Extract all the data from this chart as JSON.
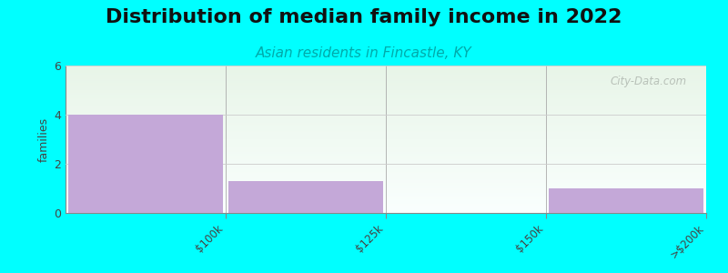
{
  "title": "Distribution of median family income in 2022",
  "subtitle": "Asian residents in Fincastle, KY",
  "categories": [
    "$100k",
    "$125k",
    "$150k",
    ">$200k"
  ],
  "values": [
    4,
    1.3,
    0,
    1
  ],
  "bar_color": "#c4a8d8",
  "background_color": "#00FFFF",
  "plot_bg_color_top": "#e8f5e8",
  "plot_bg_color_bottom": "#f8fff8",
  "ylabel": "families",
  "ylim": [
    0,
    6
  ],
  "yticks": [
    0,
    2,
    4,
    6
  ],
  "title_fontsize": 16,
  "subtitle_fontsize": 11,
  "subtitle_color": "#00AAAA",
  "watermark": "City-Data.com",
  "watermark_color": "#b0b8b0",
  "tick_label_fontsize": 8.5
}
